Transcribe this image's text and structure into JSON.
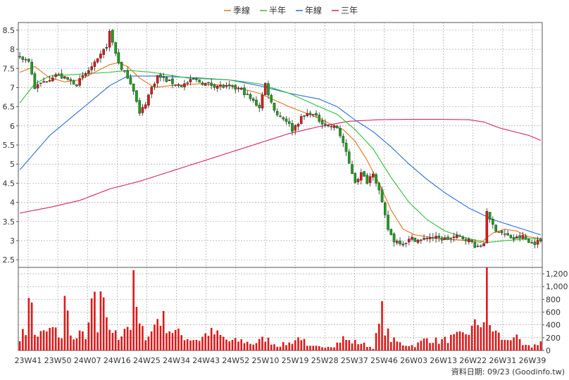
{
  "chart_data": {
    "type": "candlestick-with-volume",
    "legend": [
      {
        "name": "季線",
        "color": "#e8731a"
      },
      {
        "name": "半年",
        "color": "#2fbf3a"
      },
      {
        "name": "年線",
        "color": "#2a6fd6"
      },
      {
        "name": "三年",
        "color": "#d8236e"
      }
    ],
    "price_axis": {
      "ylim": [
        2.3,
        8.7
      ],
      "ticks": [
        2.5,
        3,
        3.5,
        4,
        4.5,
        5,
        5.5,
        6,
        6.5,
        7,
        7.5,
        8,
        8.5
      ]
    },
    "volume_axis": {
      "ylim": [
        0,
        1300
      ],
      "ticks": [
        0,
        200,
        400,
        600,
        800,
        1000,
        1200
      ],
      "tick_labels": [
        "0",
        "200",
        "400",
        "600",
        "800",
        "1,000",
        "1,200"
      ]
    },
    "x_tick_labels": [
      "23W41",
      "23W50",
      "24W07",
      "24W16",
      "24W25",
      "24W34",
      "24W43",
      "24W52",
      "25W10",
      "25W19",
      "25W28",
      "25W37",
      "25W46",
      "26W03",
      "26W13",
      "26W22",
      "26W31",
      "26W39"
    ],
    "footer": "資料日期: 09/23  (Goodinfo.tw)",
    "colors": {
      "up": "#e01818",
      "down": "#1aa31a",
      "volume": "#e01818",
      "grid": "#999999"
    },
    "price_keypoints": [
      [
        0,
        7.8
      ],
      [
        3,
        7.7
      ],
      [
        5,
        7.0
      ],
      [
        8,
        7.15
      ],
      [
        12,
        7.35
      ],
      [
        16,
        7.2
      ],
      [
        19,
        7.1
      ],
      [
        23,
        7.45
      ],
      [
        26,
        7.7
      ],
      [
        29,
        8.1
      ],
      [
        30,
        8.45
      ],
      [
        32,
        7.9
      ],
      [
        34,
        7.45
      ],
      [
        36,
        7.3
      ],
      [
        38,
        6.95
      ],
      [
        40,
        6.3
      ],
      [
        42,
        6.6
      ],
      [
        44,
        7.0
      ],
      [
        46,
        7.3
      ],
      [
        50,
        7.15
      ],
      [
        54,
        7.05
      ],
      [
        58,
        7.2
      ],
      [
        62,
        7.1
      ],
      [
        66,
        7.05
      ],
      [
        70,
        7.0
      ],
      [
        74,
        6.95
      ],
      [
        77,
        6.7
      ],
      [
        80,
        6.5
      ],
      [
        82,
        7.1
      ],
      [
        84,
        6.6
      ],
      [
        86,
        6.3
      ],
      [
        89,
        6.15
      ],
      [
        91,
        5.9
      ],
      [
        94,
        6.2
      ],
      [
        97,
        6.35
      ],
      [
        100,
        6.15
      ],
      [
        103,
        6.0
      ],
      [
        106,
        5.95
      ],
      [
        108,
        5.55
      ],
      [
        110,
        5.0
      ],
      [
        112,
        4.55
      ],
      [
        114,
        4.75
      ],
      [
        116,
        4.55
      ],
      [
        118,
        4.8
      ],
      [
        120,
        4.3
      ],
      [
        121,
        3.95
      ],
      [
        123,
        3.3
      ],
      [
        125,
        3.0
      ],
      [
        128,
        2.95
      ],
      [
        131,
        3.05
      ],
      [
        134,
        3.0
      ],
      [
        137,
        3.1
      ],
      [
        140,
        3.05
      ],
      [
        143,
        3.05
      ],
      [
        146,
        3.1
      ],
      [
        149,
        3.05
      ],
      [
        151,
        2.95
      ],
      [
        153,
        2.8
      ],
      [
        155,
        2.95
      ],
      [
        156,
        3.8
      ],
      [
        157,
        3.5
      ],
      [
        159,
        3.3
      ],
      [
        162,
        3.15
      ],
      [
        165,
        3.05
      ],
      [
        168,
        3.1
      ],
      [
        170,
        2.95
      ],
      [
        172,
        2.95
      ],
      [
        174,
        3.0
      ]
    ],
    "volume_keypoints": [
      [
        0,
        240
      ],
      [
        2,
        300
      ],
      [
        3,
        1100
      ],
      [
        5,
        250
      ],
      [
        8,
        280
      ],
      [
        11,
        350
      ],
      [
        14,
        220
      ],
      [
        15,
        780
      ],
      [
        18,
        160
      ],
      [
        20,
        250
      ],
      [
        22,
        260
      ],
      [
        25,
        850
      ],
      [
        26,
        270
      ],
      [
        27,
        920
      ],
      [
        29,
        420
      ],
      [
        31,
        330
      ],
      [
        33,
        200
      ],
      [
        35,
        420
      ],
      [
        37,
        400
      ],
      [
        38,
        1000
      ],
      [
        40,
        380
      ],
      [
        42,
        250
      ],
      [
        44,
        300
      ],
      [
        46,
        550
      ],
      [
        48,
        500
      ],
      [
        50,
        350
      ],
      [
        52,
        300
      ],
      [
        56,
        200
      ],
      [
        60,
        180
      ],
      [
        63,
        300
      ],
      [
        66,
        260
      ],
      [
        70,
        150
      ],
      [
        74,
        160
      ],
      [
        78,
        110
      ],
      [
        82,
        200
      ],
      [
        86,
        80
      ],
      [
        90,
        120
      ],
      [
        94,
        230
      ],
      [
        96,
        60
      ],
      [
        100,
        60
      ],
      [
        105,
        80
      ],
      [
        108,
        200
      ],
      [
        110,
        150
      ],
      [
        114,
        120
      ],
      [
        118,
        40
      ],
      [
        120,
        400
      ],
      [
        121,
        620
      ],
      [
        122,
        380
      ],
      [
        124,
        180
      ],
      [
        128,
        100
      ],
      [
        132,
        80
      ],
      [
        136,
        200
      ],
      [
        140,
        150
      ],
      [
        144,
        200
      ],
      [
        148,
        250
      ],
      [
        151,
        350
      ],
      [
        153,
        450
      ],
      [
        155,
        500
      ],
      [
        156,
        1220
      ],
      [
        157,
        400
      ],
      [
        159,
        300
      ],
      [
        162,
        150
      ],
      [
        165,
        250
      ],
      [
        168,
        80
      ],
      [
        171,
        60
      ],
      [
        174,
        150
      ]
    ],
    "ma_quarter": [
      [
        0,
        7.4
      ],
      [
        5,
        7.55
      ],
      [
        10,
        7.25
      ],
      [
        15,
        7.15
      ],
      [
        20,
        7.2
      ],
      [
        25,
        7.4
      ],
      [
        30,
        7.6
      ],
      [
        33,
        7.65
      ],
      [
        36,
        7.55
      ],
      [
        40,
        7.25
      ],
      [
        45,
        7.0
      ],
      [
        50,
        7.05
      ],
      [
        60,
        7.1
      ],
      [
        70,
        7.05
      ],
      [
        80,
        6.85
      ],
      [
        90,
        6.5
      ],
      [
        100,
        6.2
      ],
      [
        105,
        6.0
      ],
      [
        108,
        5.9
      ],
      [
        112,
        5.6
      ],
      [
        116,
        5.1
      ],
      [
        120,
        4.5
      ],
      [
        124,
        3.8
      ],
      [
        128,
        3.3
      ],
      [
        132,
        3.15
      ],
      [
        140,
        3.05
      ],
      [
        150,
        3.0
      ],
      [
        154,
        2.95
      ],
      [
        158,
        3.2
      ],
      [
        162,
        3.3
      ],
      [
        166,
        3.25
      ],
      [
        170,
        3.1
      ],
      [
        174,
        3.05
      ]
    ],
    "ma_half": [
      [
        0,
        6.6
      ],
      [
        5,
        7.1
      ],
      [
        10,
        7.3
      ],
      [
        20,
        7.35
      ],
      [
        30,
        7.4
      ],
      [
        36,
        7.45
      ],
      [
        44,
        7.4
      ],
      [
        56,
        7.25
      ],
      [
        70,
        7.2
      ],
      [
        80,
        7.1
      ],
      [
        90,
        6.85
      ],
      [
        100,
        6.5
      ],
      [
        106,
        6.3
      ],
      [
        112,
        5.9
      ],
      [
        118,
        5.4
      ],
      [
        124,
        4.65
      ],
      [
        130,
        4.0
      ],
      [
        136,
        3.55
      ],
      [
        142,
        3.25
      ],
      [
        150,
        3.05
      ],
      [
        156,
        2.95
      ],
      [
        162,
        3.0
      ],
      [
        170,
        3.05
      ],
      [
        174,
        3.05
      ]
    ],
    "ma_year": [
      [
        0,
        4.85
      ],
      [
        5,
        5.3
      ],
      [
        10,
        5.75
      ],
      [
        20,
        6.4
      ],
      [
        30,
        7.05
      ],
      [
        36,
        7.3
      ],
      [
        46,
        7.3
      ],
      [
        60,
        7.25
      ],
      [
        70,
        7.2
      ],
      [
        80,
        7.05
      ],
      [
        90,
        6.85
      ],
      [
        100,
        6.7
      ],
      [
        106,
        6.5
      ],
      [
        112,
        6.15
      ],
      [
        118,
        5.85
      ],
      [
        124,
        5.45
      ],
      [
        130,
        5.0
      ],
      [
        136,
        4.6
      ],
      [
        142,
        4.25
      ],
      [
        150,
        3.85
      ],
      [
        158,
        3.55
      ],
      [
        166,
        3.35
      ],
      [
        174,
        3.15
      ]
    ],
    "ma_3year": [
      [
        0,
        3.72
      ],
      [
        10,
        3.87
      ],
      [
        20,
        4.05
      ],
      [
        30,
        4.35
      ],
      [
        40,
        4.55
      ],
      [
        50,
        4.8
      ],
      [
        60,
        5.05
      ],
      [
        70,
        5.3
      ],
      [
        80,
        5.55
      ],
      [
        90,
        5.8
      ],
      [
        100,
        5.98
      ],
      [
        110,
        6.12
      ],
      [
        120,
        6.16
      ],
      [
        130,
        6.17
      ],
      [
        140,
        6.17
      ],
      [
        150,
        6.16
      ],
      [
        155,
        6.1
      ],
      [
        160,
        5.95
      ],
      [
        165,
        5.85
      ],
      [
        170,
        5.75
      ],
      [
        174,
        5.62
      ]
    ]
  }
}
